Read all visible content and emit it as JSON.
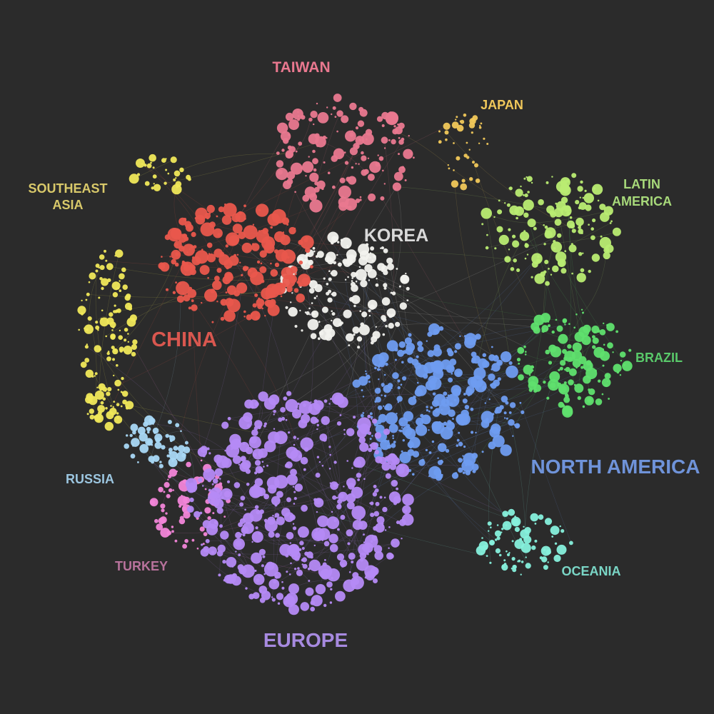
{
  "background": "#2b2b2b",
  "clusters": [
    {
      "id": "taiwan",
      "label": "TAIWAN",
      "color": "#e9788f"
    },
    {
      "id": "japan",
      "label": "JAPAN",
      "color": "#f1c85a"
    },
    {
      "id": "southeast-asia",
      "label_lines": [
        "SOUTHEAST",
        "ASIA"
      ],
      "color": "#f0e85a",
      "label_color": "#d9c96a"
    },
    {
      "id": "latin-america",
      "label_lines": [
        "LATIN",
        "AMERICA"
      ],
      "color": "#b9ec72",
      "label_color": "#a7d97a"
    },
    {
      "id": "korea",
      "label": "KOREA",
      "color": "#f2f2ee",
      "label_color": "#d9d9d9"
    },
    {
      "id": "china",
      "label": "CHINA",
      "color": "#e9574c",
      "label_color": "#d9574f"
    },
    {
      "id": "brazil",
      "label": "BRAZIL",
      "color": "#5fe06e",
      "label_color": "#59c96a"
    },
    {
      "id": "north-america",
      "label": "NORTH AMERICA",
      "color": "#6f9cf0",
      "label_color": "#6f93d9"
    },
    {
      "id": "russia",
      "label": "RUSSIA",
      "color": "#a9d8f5",
      "label_color": "#9cc6e0"
    },
    {
      "id": "turkey",
      "label": "TURKEY",
      "color": "#f285d8",
      "label_color": "#b8729c"
    },
    {
      "id": "europe",
      "label": "EUROPE",
      "color": "#b58af5",
      "label_color": "#a78ae0"
    },
    {
      "id": "oceania",
      "label": "OCEANIA",
      "color": "#86f0dc",
      "label_color": "#7ad6c6"
    }
  ]
}
